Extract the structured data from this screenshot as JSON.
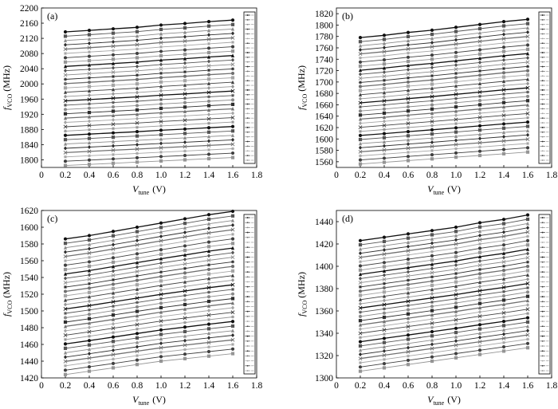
{
  "chart_data": [
    {
      "type": "line",
      "panel_label": "(a)",
      "ylabel": {
        "var": "f",
        "sub": "VCO",
        "unit": "(MHz)"
      },
      "xlabel": {
        "var": "V",
        "sub": "tune",
        "unit": "(V)"
      },
      "xlim": [
        0,
        1.8
      ],
      "ylim": [
        1780,
        2200
      ],
      "xticks": [
        "0",
        "0.2",
        "0.4",
        "0.6",
        "0.8",
        "1.0",
        "1.2",
        "1.4",
        "1.6",
        "1.8"
      ],
      "yticks": [
        "1800",
        "1840",
        "1880",
        "1920",
        "1960",
        "2000",
        "2040",
        "2080",
        "2120",
        "2160",
        "2200"
      ],
      "x": [
        0.2,
        0.4,
        0.6,
        0.8,
        1.0,
        1.2,
        1.4,
        1.6
      ],
      "series_count": 32,
      "top_curve": [
        2137,
        2141,
        2145,
        2149,
        2155,
        2159,
        2164,
        2168
      ],
      "bottom_curve": [
        1785,
        1788,
        1791,
        1794,
        1797,
        1800,
        1803,
        1806
      ],
      "legend_position": "right"
    },
    {
      "type": "line",
      "panel_label": "(b)",
      "ylabel": {
        "var": "f",
        "sub": "VCO",
        "unit": "(MHz)"
      },
      "xlabel": {
        "var": "V",
        "sub": "tune",
        "unit": "(V)"
      },
      "xlim": [
        0,
        1.8
      ],
      "ylim": [
        1550,
        1830
      ],
      "xticks": [
        "0",
        "0.2",
        "0.4",
        "0.6",
        "0.8",
        "1.0",
        "1.2",
        "1.4",
        "1.6",
        "1.8"
      ],
      "yticks": [
        "1560",
        "1580",
        "1600",
        "1620",
        "1640",
        "1660",
        "1680",
        "1700",
        "1720",
        "1740",
        "1760",
        "1780",
        "1800",
        "1820"
      ],
      "x": [
        0.2,
        0.4,
        0.6,
        0.8,
        1.0,
        1.2,
        1.4,
        1.6
      ],
      "series_count": 32,
      "top_curve": [
        1778,
        1782,
        1787,
        1791,
        1796,
        1801,
        1806,
        1810
      ],
      "bottom_curve": [
        1556,
        1559,
        1562,
        1565,
        1568,
        1571,
        1574,
        1577
      ],
      "legend_position": "right"
    },
    {
      "type": "line",
      "panel_label": "(c)",
      "ylabel": {
        "var": "f",
        "sub": "VCO",
        "unit": "(MHz)"
      },
      "xlabel": {
        "var": "V",
        "sub": "tune",
        "unit": "(V)"
      },
      "xlim": [
        0,
        1.8
      ],
      "ylim": [
        1420,
        1620
      ],
      "xticks": [
        "0",
        "0.2",
        "0.4",
        "0.6",
        "0.8",
        "1.0",
        "1.2",
        "1.4",
        "1.6",
        "1.8"
      ],
      "yticks": [
        "1420",
        "1440",
        "1460",
        "1480",
        "1500",
        "1520",
        "1540",
        "1560",
        "1580",
        "1600",
        "1620"
      ],
      "x": [
        0.2,
        0.4,
        0.6,
        0.8,
        1.0,
        1.2,
        1.4,
        1.6
      ],
      "series_count": 32,
      "top_curve": [
        1586,
        1590,
        1595,
        1600,
        1605,
        1610,
        1615,
        1619
      ],
      "bottom_curve": [
        1424,
        1428,
        1432,
        1436,
        1440,
        1443,
        1446,
        1449
      ],
      "legend_position": "right"
    },
    {
      "type": "line",
      "panel_label": "(d)",
      "ylabel": {
        "var": "f",
        "sub": "VCO",
        "unit": "(MHz)"
      },
      "xlabel": {
        "var": "V",
        "sub": "tune",
        "unit": "(V)"
      },
      "xlim": [
        0,
        1.8
      ],
      "ylim": [
        1300,
        1450
      ],
      "xticks": [
        "0",
        "0.2",
        "0.4",
        "0.6",
        "0.8",
        "1.0",
        "1.2",
        "1.4",
        "1.6",
        "1.8"
      ],
      "yticks": [
        "1300",
        "1320",
        "1340",
        "1360",
        "1380",
        "1400",
        "1420",
        "1440"
      ],
      "x": [
        0.2,
        0.4,
        0.6,
        0.8,
        1.0,
        1.2,
        1.4,
        1.6
      ],
      "series_count": 32,
      "top_curve": [
        1423,
        1426,
        1429,
        1432,
        1435,
        1439,
        1442,
        1446
      ],
      "bottom_curve": [
        1306,
        1309,
        1312,
        1315,
        1318,
        1321,
        1324,
        1327
      ],
      "legend_position": "right"
    }
  ]
}
